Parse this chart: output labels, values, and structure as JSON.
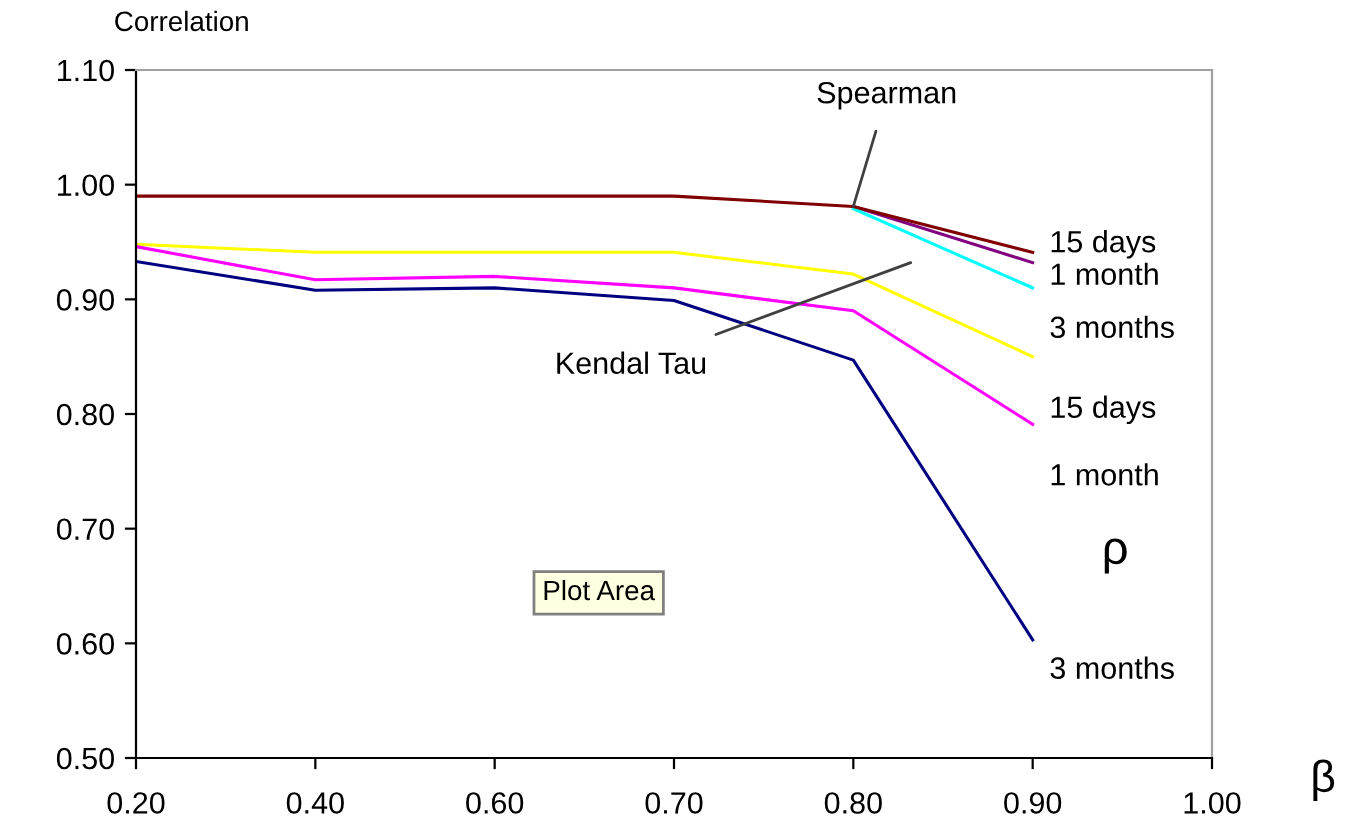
{
  "chart_data": {
    "type": "line",
    "ylabel": "Correlation",
    "xlabel": "β",
    "categories": [
      "0.20",
      "0.40",
      "0.60",
      "0.70",
      "0.80",
      "0.90",
      "1.00"
    ],
    "ylim": [
      0.5,
      1.1
    ],
    "yticks": [
      {
        "value": 0.5,
        "label": "0.50"
      },
      {
        "value": 0.6,
        "label": "0.60"
      },
      {
        "value": 0.7,
        "label": "0.70"
      },
      {
        "value": 0.8,
        "label": "0.80"
      },
      {
        "value": 0.9,
        "label": "0.90"
      },
      {
        "value": 1.0,
        "label": "1.00"
      },
      {
        "value": 1.1,
        "label": "1.10"
      }
    ],
    "grid": false,
    "marker": "none",
    "line_style": "solid",
    "series": [
      {
        "name": "1 month",
        "color": "#800080",
        "values": [
          null,
          null,
          null,
          null,
          0.981,
          0.932,
          null
        ]
      },
      {
        "name": "3 months",
        "color": "#00ffff",
        "values": [
          null,
          null,
          null,
          null,
          0.979,
          0.91,
          null
        ]
      },
      {
        "name": "15 days",
        "color": "#800000",
        "values": [
          0.99,
          0.99,
          0.99,
          0.99,
          0.981,
          0.941,
          null
        ]
      },
      {
        "name": "15 days",
        "color": "#ffff00",
        "values": [
          0.948,
          0.941,
          0.941,
          0.941,
          0.922,
          0.85,
          null
        ]
      },
      {
        "name": "1 month",
        "color": "#ff00ff",
        "values": [
          0.946,
          0.917,
          0.92,
          0.91,
          0.89,
          0.791,
          null
        ]
      },
      {
        "name": "3 months",
        "color": "#000080",
        "values": [
          0.933,
          0.908,
          0.91,
          0.899,
          0.847,
          0.603,
          null
        ]
      }
    ],
    "annotations": [
      {
        "text": "Spearman",
        "x": "0.80",
        "y": 0.981
      },
      "Kendal Tau",
      "ρ",
      "Plot Area"
    ]
  }
}
